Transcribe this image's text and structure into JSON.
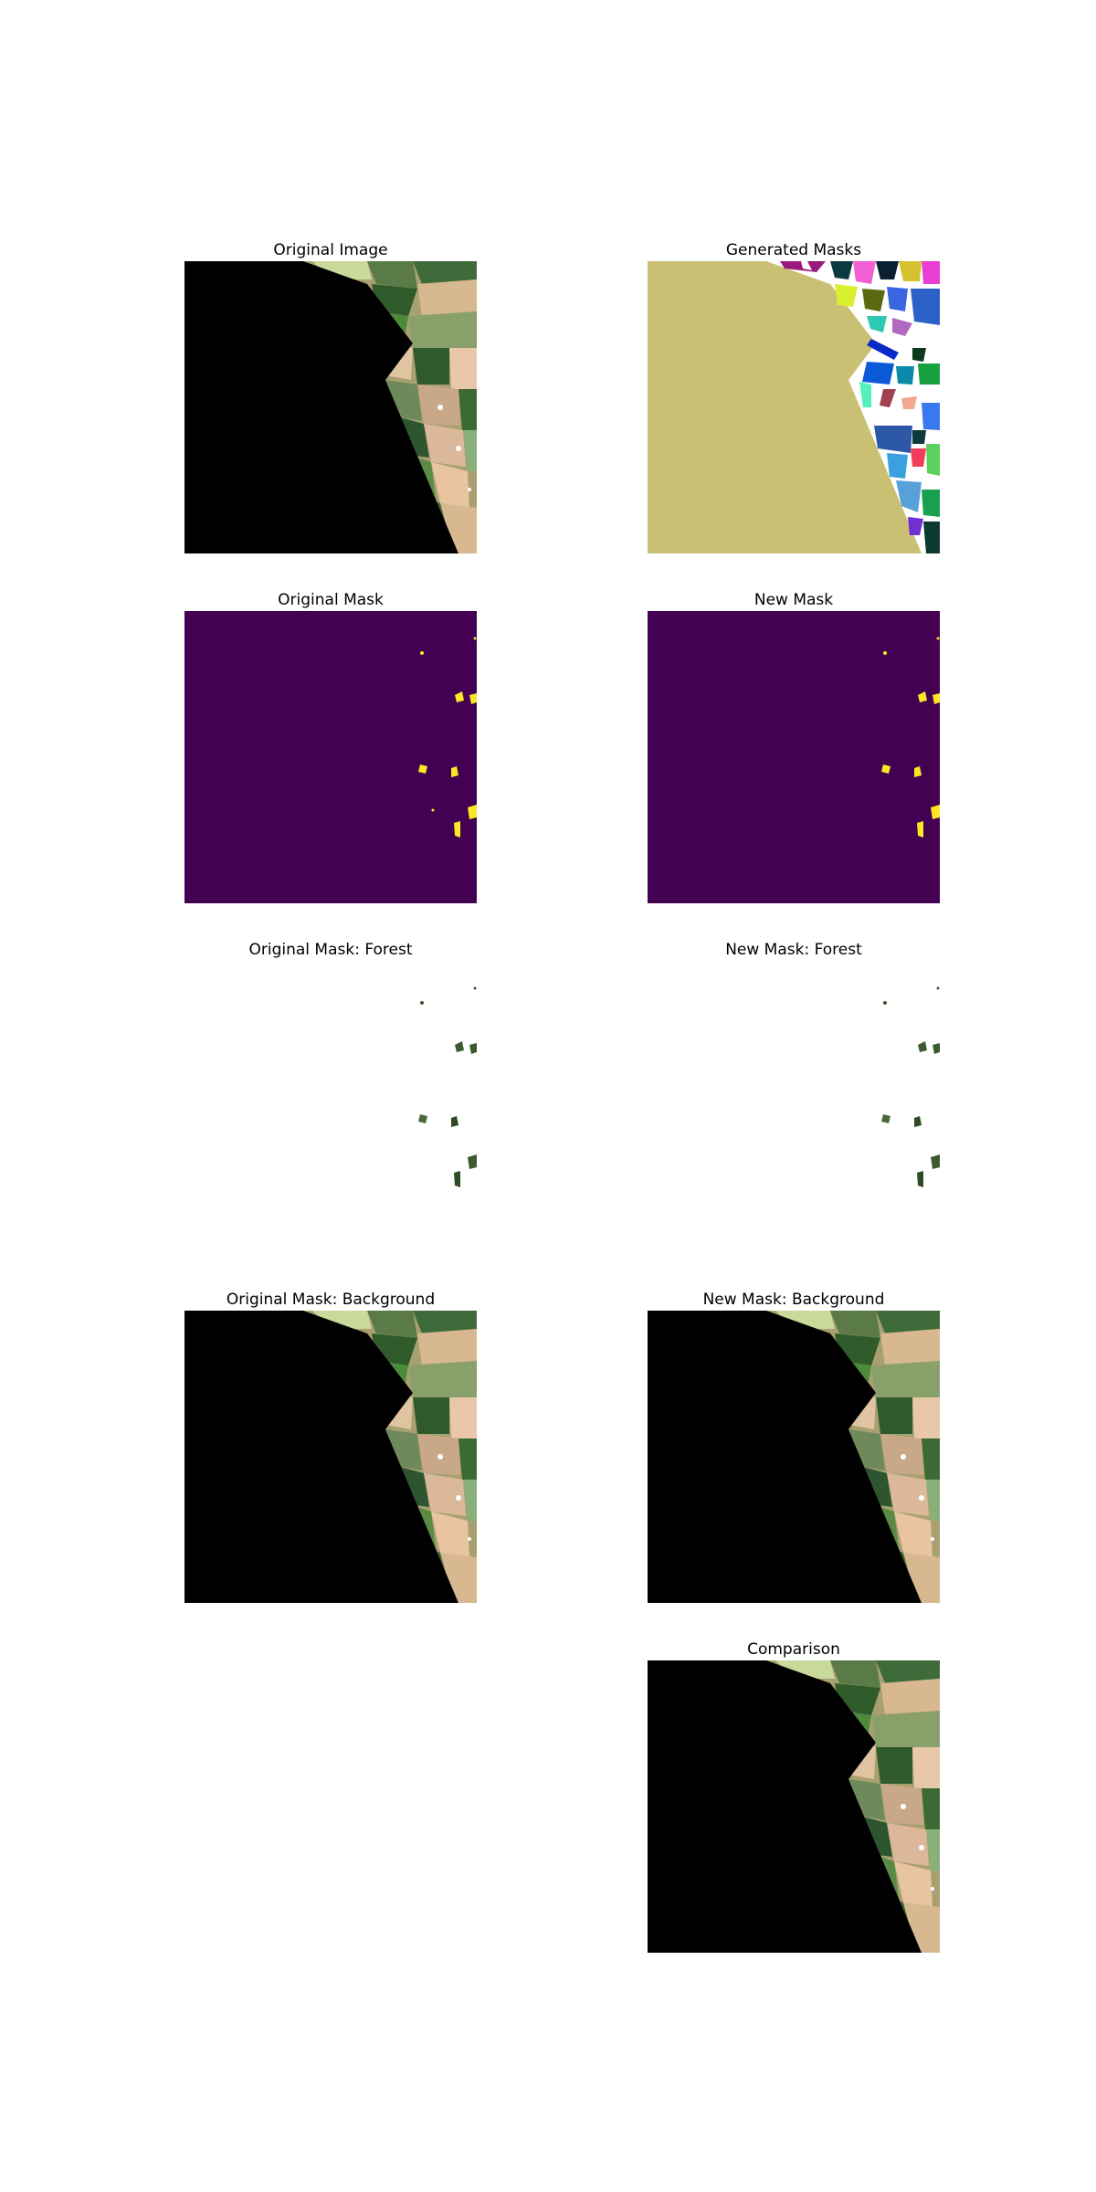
{
  "panels": {
    "original_image": {
      "title": "Original Image"
    },
    "generated_masks": {
      "title": "Generated Masks"
    },
    "original_mask": {
      "title": "Original Mask"
    },
    "new_mask": {
      "title": "New Mask"
    },
    "original_mask_forest": {
      "title": "Original Mask: Forest"
    },
    "new_mask_forest": {
      "title": "New Mask: Forest"
    },
    "original_mask_background": {
      "title": "Original Mask: Background"
    },
    "new_mask_background": {
      "title": "New Mask: Background"
    },
    "comparison": {
      "title": "Comparison"
    }
  },
  "colors": {
    "nodata": "#000000",
    "mask_background": "#440154",
    "mask_forest": "#fde725",
    "generated_large_segment": "#c9c073",
    "forest_dark": "#3c5a2e"
  }
}
